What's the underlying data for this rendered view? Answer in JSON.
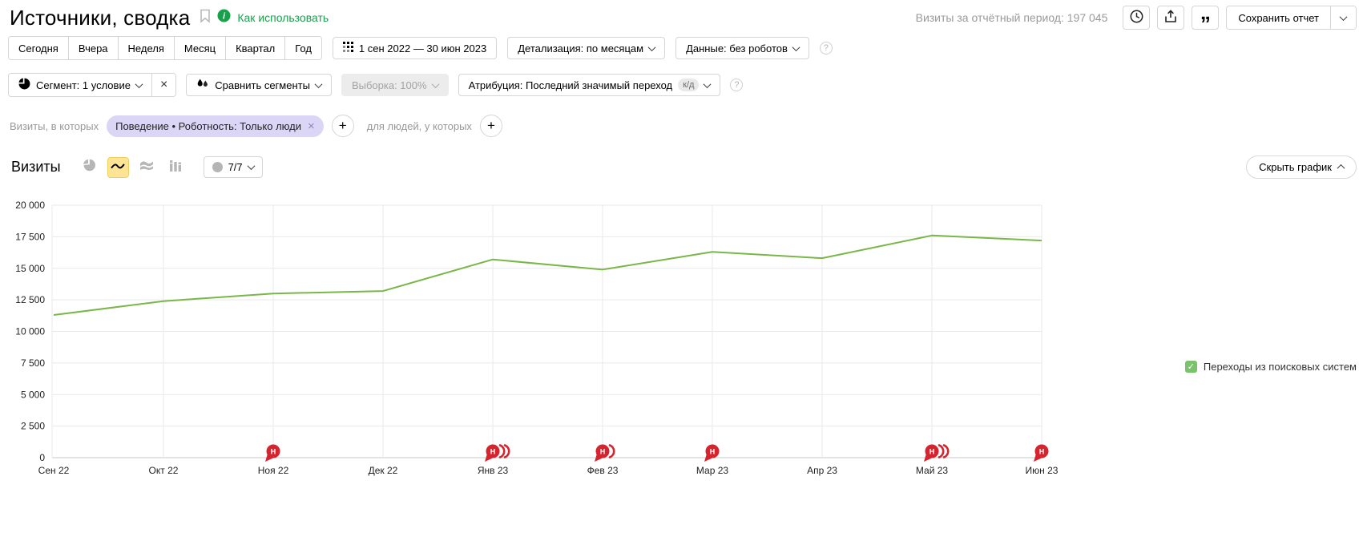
{
  "header": {
    "title": "Источники, сводка",
    "help_link": "Как использовать",
    "visits_total": "Визиты за отчётный период: 197 045",
    "save_report": "Сохранить отчет"
  },
  "period_tabs": [
    "Сегодня",
    "Вчера",
    "Неделя",
    "Месяц",
    "Квартал",
    "Год"
  ],
  "filters": {
    "date_range": "1 сен 2022 — 30 июн 2023",
    "detail": "Детализация: по месяцам",
    "data_mode": "Данные: без роботов"
  },
  "segment_bar": {
    "segment": "Сегмент: 1 условие",
    "compare": "Сравнить сегменты",
    "sample": "Выборка: 100%",
    "attribution": "Атрибуция: Последний значимый переход",
    "attribution_badge": "к/д"
  },
  "condition_row": {
    "visits_prefix": "Визиты, в которых",
    "chip": "Поведение • Роботность: Только люди",
    "people_prefix": "для людей, у которых"
  },
  "chart_header": {
    "title": "Визиты",
    "bubble_count": "7/7",
    "hide_chart": "Скрыть график"
  },
  "legend": {
    "label": "Переходы из поисковых систем"
  },
  "colors": {
    "line": "#7ab648",
    "badge_red": "#d6232e",
    "legend_green": "#79c36a",
    "selected_yellow": "#ffe494",
    "chip_lavender": "#dcd6f6",
    "link_green": "#18a04b"
  },
  "chart_data": {
    "type": "line",
    "title": "Визиты",
    "x": [
      "Сен 22",
      "Окт 22",
      "Ноя 22",
      "Дек 22",
      "Янв 23",
      "Фев 23",
      "Мар 23",
      "Апр 23",
      "Май 23",
      "Июн 23"
    ],
    "series": [
      {
        "name": "Переходы из поисковых систем",
        "color": "#7ab648",
        "values": [
          11300,
          12400,
          13000,
          13200,
          15700,
          14900,
          16300,
          15800,
          17600,
          17200
        ]
      }
    ],
    "ylim": [
      0,
      20000
    ],
    "yticks": [
      0,
      2500,
      5000,
      7500,
      10000,
      12500,
      15000,
      17500,
      20000
    ],
    "ytick_labels": [
      "0",
      "2 500",
      "5 000",
      "7 500",
      "10 000",
      "12 500",
      "15 000",
      "17 500",
      "20 000"
    ],
    "grid": true,
    "legend_position": "right",
    "news_badges": [
      {
        "x": "Ноя 22",
        "letter": "Н",
        "stack": 1
      },
      {
        "x": "Янв 23",
        "letter": "Н",
        "stack": 3
      },
      {
        "x": "Фев 23",
        "letter": "Н",
        "stack": 2
      },
      {
        "x": "Мар 23",
        "letter": "Н",
        "stack": 1
      },
      {
        "x": "Май 23",
        "letter": "Н",
        "stack": 3
      },
      {
        "x": "Июн 23",
        "letter": "Н",
        "stack": 1
      }
    ]
  }
}
